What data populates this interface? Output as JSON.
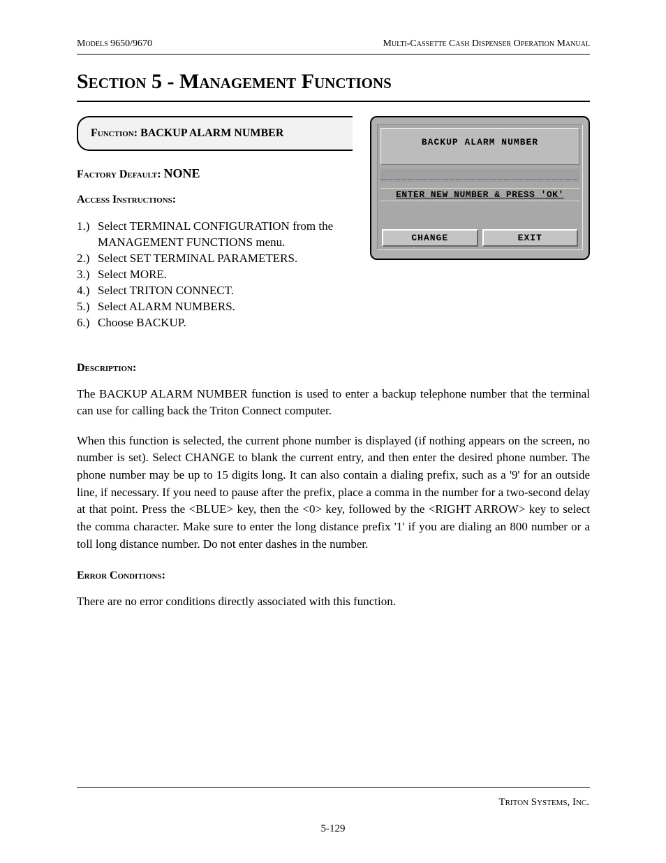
{
  "header": {
    "left": "Models 9650/9670",
    "right": "Multi-Cassette Cash Dispenser Operation Manual"
  },
  "section_title": "Section 5 - Management Functions",
  "function_box": {
    "label": "Function:",
    "name": "BACKUP ALARM NUMBER"
  },
  "factory_default": {
    "label": "Factory Default:",
    "value": "NONE"
  },
  "access": {
    "heading": "Access Instructions:",
    "items": [
      {
        "n": "1.)",
        "t": "Select TERMINAL CONFIGURATION from the MANAGEMENT FUNCTIONS menu."
      },
      {
        "n": "2.)",
        "t": "Select SET TERMINAL PARAMETERS."
      },
      {
        "n": "3.)",
        "t": "Select MORE."
      },
      {
        "n": "4.)",
        "t": "Select TRITON CONNECT."
      },
      {
        "n": "5.)",
        "t": "Select ALARM NUMBERS."
      },
      {
        "n": "6.)",
        "t": "Choose BACKUP."
      }
    ]
  },
  "description": {
    "heading": "Description:",
    "p1": "The BACKUP ALARM NUMBER function is used to enter a backup telephone number that the terminal can use for calling back the Triton Connect computer.",
    "p2": "When this function is selected, the current phone number is displayed (if nothing appears on the screen, no number is set).  Select CHANGE to blank the current entry, and then enter the desired phone number.  The phone number may be up to 15 digits long.  It can also contain a dialing prefix, such as a '9' for an outside line, if necessary.  If you need to pause after the prefix, place a comma in the number for a two-second delay at that point.  Press the <BLUE> key, then the <0> key, followed by the <RIGHT ARROW> key to select the comma character.  Make sure to enter the long distance prefix '1' if you are dialing an 800 number or a toll long distance number.  Do not enter dashes in the number."
  },
  "errors": {
    "heading": "Error Conditions:",
    "p": "There are no error conditions directly associated with this function."
  },
  "terminal": {
    "title": "BACKUP ALARM NUMBER",
    "field": "_____________________________",
    "instruction": "ENTER NEW NUMBER & PRESS 'OK'",
    "buttons": {
      "change": "CHANGE",
      "exit": "EXIT"
    },
    "colors": {
      "panel_bg": "#b0b0b0",
      "field_text": "#2e5aa0",
      "button_bg": "#c4c4c4"
    }
  },
  "footer": {
    "company": "Triton Systems, Inc.",
    "page": "5-129"
  }
}
